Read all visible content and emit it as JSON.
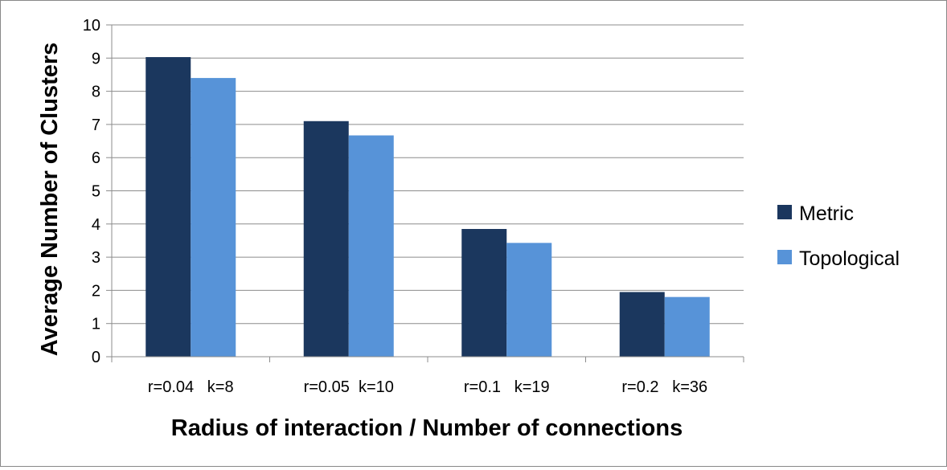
{
  "chart_data": {
    "type": "bar",
    "title": "",
    "xlabel": "Radius of interaction / Number of connections",
    "ylabel": "Average Number of Clusters",
    "categories": [
      "r=0.04   k=8",
      "r=0.05  k=10",
      "r=0.1   k=19",
      "r=0.2   k=36"
    ],
    "series": [
      {
        "name": "Metric",
        "color": "#1b375e",
        "values": [
          9.03,
          7.1,
          3.85,
          1.95
        ]
      },
      {
        "name": "Topological",
        "color": "#5793d8",
        "values": [
          8.4,
          6.67,
          3.43,
          1.8
        ]
      }
    ],
    "ylim": [
      0,
      10
    ],
    "yticks": [
      "0",
      "1",
      "2",
      "3",
      "4",
      "5",
      "6",
      "7",
      "8",
      "9",
      "10"
    ],
    "grid": true,
    "legend_position": "right"
  }
}
